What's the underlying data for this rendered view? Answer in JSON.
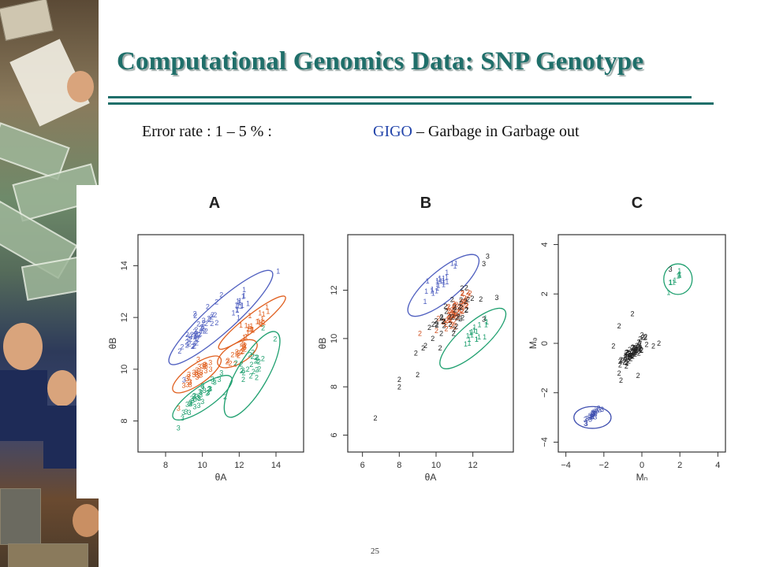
{
  "slide": {
    "title": "Computational Genomics Data: SNP Genotype",
    "subtitle_left": "Error rate : 1 – 5 % :",
    "gigo": "GIGO",
    "subtitle_rest": " – Garbage in Garbage out",
    "page_number": "25",
    "accent_color": "#1f6f6a",
    "gigo_color": "#2244aa"
  },
  "chart_data": [
    {
      "type": "scatter",
      "panel": "A",
      "xlabel": "θA",
      "ylabel": "θB",
      "xlim": [
        6.5,
        15.5
      ],
      "ylim": [
        6.8,
        15.2
      ],
      "xticks": [
        8,
        10,
        12,
        14
      ],
      "yticks": [
        8,
        10,
        12,
        14
      ],
      "series": [
        {
          "label": "1",
          "color": "#5060c0",
          "cx": 12.3,
          "cy": 12.6,
          "sx": 0.55,
          "sy": 0.45,
          "n": 16
        },
        {
          "label": "2",
          "color": "#5060c0",
          "cx": 9.7,
          "cy": 11.3,
          "sx": 0.6,
          "sy": 0.5,
          "n": 48
        },
        {
          "label": "1",
          "color": "#e06020",
          "cx": 12.7,
          "cy": 11.6,
          "sx": 0.5,
          "sy": 0.45,
          "n": 24
        },
        {
          "label": "2",
          "color": "#e06020",
          "cx": 12.0,
          "cy": 10.6,
          "sx": 0.45,
          "sy": 0.3,
          "n": 18
        },
        {
          "label": "3",
          "color": "#e06020",
          "cx": 9.7,
          "cy": 9.8,
          "sx": 0.4,
          "sy": 0.35,
          "n": 28
        },
        {
          "label": "2",
          "color": "#20a070",
          "cx": 12.8,
          "cy": 10.2,
          "sx": 0.4,
          "sy": 0.6,
          "n": 24
        },
        {
          "label": "3",
          "color": "#20a070",
          "cx": 9.9,
          "cy": 8.9,
          "sx": 0.55,
          "sy": 0.35,
          "n": 36
        }
      ],
      "ellipses": [
        {
          "color": "#5060c0",
          "cx": 11.0,
          "cy": 12.0,
          "rx": 3.1,
          "ry": 0.65,
          "angle": 42
        },
        {
          "color": "#e06020",
          "cx": 12.7,
          "cy": 11.8,
          "rx": 1.9,
          "ry": 0.35,
          "angle": 38
        },
        {
          "color": "#e06020",
          "cx": 11.9,
          "cy": 10.6,
          "rx": 1.0,
          "ry": 0.45,
          "angle": 30
        },
        {
          "color": "#e06020",
          "cx": 9.7,
          "cy": 9.8,
          "rx": 1.3,
          "ry": 0.45,
          "angle": 35
        },
        {
          "color": "#20a070",
          "cx": 12.7,
          "cy": 9.8,
          "rx": 2.2,
          "ry": 0.7,
          "angle": 60
        },
        {
          "color": "#20a070",
          "cx": 10.0,
          "cy": 8.9,
          "rx": 1.6,
          "ry": 0.5,
          "angle": 35
        }
      ],
      "extra_labels": [
        {
          "t": "3",
          "x": 8.7,
          "y": 8.4,
          "color": "#e06020"
        },
        {
          "t": "3",
          "x": 9.0,
          "y": 9.5,
          "color": "#5060c0"
        },
        {
          "t": "2",
          "x": 13.3,
          "y": 11.5,
          "color": "#20a070"
        }
      ]
    },
    {
      "type": "scatter",
      "panel": "B",
      "xlabel": "θA",
      "ylabel": "θB",
      "xlim": [
        5.2,
        14.2
      ],
      "ylim": [
        5.3,
        14.3
      ],
      "xticks": [
        6,
        8,
        10,
        12
      ],
      "yticks": [
        6,
        8,
        10,
        12
      ],
      "series": [
        {
          "label": "1",
          "color": "#5060c0",
          "cx": 10.2,
          "cy": 12.2,
          "sx": 0.6,
          "sy": 0.35,
          "n": 24
        },
        {
          "label": "2",
          "color": "#d05020",
          "cx": 11.0,
          "cy": 11.0,
          "sx": 0.55,
          "sy": 0.55,
          "n": 60
        },
        {
          "label": "2",
          "color": "#222222",
          "cx": 10.9,
          "cy": 10.9,
          "sx": 0.8,
          "sy": 0.8,
          "n": 40
        },
        {
          "label": "1",
          "color": "#20a070",
          "cx": 12.0,
          "cy": 10.0,
          "sx": 0.55,
          "sy": 0.4,
          "n": 18
        }
      ],
      "ellipses": [
        {
          "color": "#5060c0",
          "cx": 10.4,
          "cy": 12.2,
          "rx": 2.1,
          "ry": 0.7,
          "angle": 40
        },
        {
          "color": "#20a070",
          "cx": 12.0,
          "cy": 10.0,
          "rx": 2.0,
          "ry": 0.65,
          "angle": 42
        }
      ],
      "extra_labels": [
        {
          "t": "2",
          "x": 6.7,
          "y": 6.6,
          "color": "#222222"
        },
        {
          "t": "2",
          "x": 8.0,
          "y": 8.2,
          "color": "#222222"
        },
        {
          "t": "2",
          "x": 8.0,
          "y": 7.9,
          "color": "#222222"
        },
        {
          "t": "2",
          "x": 9.0,
          "y": 8.4,
          "color": "#222222"
        },
        {
          "t": "2",
          "x": 8.9,
          "y": 9.3,
          "color": "#222222"
        },
        {
          "t": "2",
          "x": 9.3,
          "y": 9.5,
          "color": "#222222"
        },
        {
          "t": "3",
          "x": 12.8,
          "y": 13.3,
          "color": "#222222"
        },
        {
          "t": "3",
          "x": 12.6,
          "y": 13.0,
          "color": "#222222"
        },
        {
          "t": "3",
          "x": 13.3,
          "y": 11.6,
          "color": "#222222"
        },
        {
          "t": "3",
          "x": 12.6,
          "y": 10.7,
          "color": "#222222"
        }
      ]
    },
    {
      "type": "scatter",
      "panel": "C",
      "xlabel": "Mₙ",
      "ylabel": "Mₔ",
      "xlim": [
        -4.4,
        4.4
      ],
      "ylim": [
        -4.4,
        4.4
      ],
      "xticks": [
        -4,
        -2,
        0,
        2,
        4
      ],
      "yticks": [
        -4,
        -2,
        0,
        2,
        4
      ],
      "series": [
        {
          "label": "3",
          "color": "#4050b0",
          "cx": -2.6,
          "cy": -3.0,
          "sx": 0.25,
          "sy": 0.15,
          "n": 26
        },
        {
          "label": "2",
          "color": "#222222",
          "cx": -0.4,
          "cy": -0.4,
          "sx": 0.35,
          "sy": 0.35,
          "n": 70
        },
        {
          "label": "1",
          "color": "#20a070",
          "cx": 1.9,
          "cy": 2.6,
          "sx": 0.25,
          "sy": 0.25,
          "n": 10
        }
      ],
      "ellipses": [
        {
          "color": "#4050b0",
          "cx": -2.6,
          "cy": -3.0,
          "rx": 0.85,
          "ry": 0.5,
          "angle": 0
        },
        {
          "color": "#20a070",
          "cx": 1.9,
          "cy": 2.6,
          "rx": 0.65,
          "ry": 0.7,
          "angle": 0
        }
      ],
      "extra_labels": [
        {
          "t": "2",
          "x": -0.5,
          "y": 1.1,
          "color": "#222222"
        },
        {
          "t": "2",
          "x": -1.2,
          "y": 0.6,
          "color": "#222222"
        },
        {
          "t": "2",
          "x": -1.5,
          "y": -0.2,
          "color": "#222222"
        },
        {
          "t": "2",
          "x": 0.6,
          "y": -0.2,
          "color": "#222222"
        },
        {
          "t": "2",
          "x": 0.9,
          "y": -0.1,
          "color": "#222222"
        },
        {
          "t": "2",
          "x": -1.2,
          "y": -1.3,
          "color": "#222222"
        },
        {
          "t": "2",
          "x": -1.1,
          "y": -1.6,
          "color": "#222222"
        },
        {
          "t": "2",
          "x": -0.2,
          "y": -1.4,
          "color": "#222222"
        },
        {
          "t": "3",
          "x": 1.5,
          "y": 2.9,
          "color": "#222222"
        }
      ]
    }
  ]
}
